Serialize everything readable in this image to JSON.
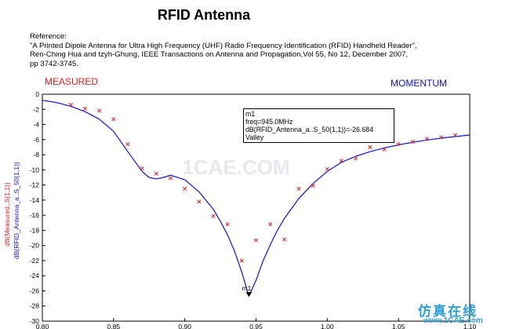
{
  "header": {
    "title": "RFID Antenna",
    "reference_lines": [
      "Reference:",
      "\"A Printed Dipole Antenna for Ultra High Frequency (UHF) Radio Frequency Identification (RFID) Handheld  Reader\",",
      "Ren-Ching Hua and tzyh-Ghung, IEEE Transactions on Antenna and Propagation,Vol 55, No 12, December 2007,",
      "pp 3742-3745."
    ]
  },
  "labels": {
    "measured": "MEASURED",
    "momentum": "MOMENTUM",
    "ylabel_measured": "dB(Measured..S(1,1))",
    "ylabel_sim": "dB(RFID_Antenna_a..S_50(1,1))"
  },
  "marker": {
    "name": "m1",
    "freq_line": "freq=945.0MHz",
    "value_line": "dB(RFID_Antenna_a..S_50(1,1))=-26.684",
    "type_line": "Valley",
    "x": 0.945,
    "y": -26.684
  },
  "watermarks": {
    "center": "1CAE.COM",
    "corner_cn": "仿真在线",
    "corner_url": "www.1CAE.com"
  },
  "colors": {
    "measured": "#e02020",
    "simulated": "#1010e0"
  },
  "chart_data": {
    "type": "line",
    "title": "",
    "xlabel": "",
    "ylabel": "dB(Measured..S(1,1)) / dB(RFID_Antenna_a..S_50(1,1))",
    "xlim": [
      0.8,
      1.1
    ],
    "ylim": [
      -30,
      0
    ],
    "xticks": [
      0.8,
      0.85,
      0.9,
      0.95,
      1.0,
      1.05,
      1.1
    ],
    "xtick_labels": [
      "0.80",
      "0.85",
      "0.90",
      "0.95",
      "1.00",
      "1.05",
      "1.10"
    ],
    "yticks": [
      0,
      -2,
      -4,
      -6,
      -8,
      -10,
      -12,
      -14,
      -16,
      -18,
      -20,
      -22,
      -24,
      -26,
      -28,
      -30
    ],
    "grid": false,
    "series": [
      {
        "name": "dB(RFID_Antenna_a..S_50(1,1))",
        "style": "line",
        "color": "#1010e0",
        "x": [
          0.8,
          0.81,
          0.82,
          0.83,
          0.84,
          0.85,
          0.86,
          0.87,
          0.875,
          0.88,
          0.885,
          0.89,
          0.9,
          0.91,
          0.92,
          0.925,
          0.93,
          0.935,
          0.94,
          0.945,
          0.95,
          0.955,
          0.96,
          0.965,
          0.97,
          0.98,
          0.99,
          1.0,
          1.01,
          1.02,
          1.03,
          1.04,
          1.05,
          1.06,
          1.07,
          1.08,
          1.09,
          1.1
        ],
        "y": [
          -0.8,
          -1.1,
          -1.6,
          -2.3,
          -3.3,
          -4.9,
          -7.6,
          -10.2,
          -11.0,
          -11.2,
          -11.0,
          -10.7,
          -11.3,
          -12.9,
          -15.2,
          -16.8,
          -18.6,
          -20.8,
          -23.5,
          -26.7,
          -24.6,
          -22.0,
          -19.9,
          -18.0,
          -16.4,
          -13.8,
          -11.8,
          -10.2,
          -9.0,
          -8.2,
          -7.6,
          -7.1,
          -6.7,
          -6.35,
          -6.05,
          -5.8,
          -5.6,
          -5.4
        ]
      },
      {
        "name": "dB(Measured..S(1,1))",
        "style": "markers",
        "color": "#e02020",
        "x": [
          0.82,
          0.83,
          0.84,
          0.85,
          0.86,
          0.87,
          0.88,
          0.89,
          0.9,
          0.91,
          0.92,
          0.93,
          0.94,
          0.95,
          0.96,
          0.97,
          0.98,
          0.99,
          1.0,
          1.01,
          1.02,
          1.03,
          1.04,
          1.05,
          1.06,
          1.07,
          1.08,
          1.09
        ],
        "y": [
          -1.4,
          -1.9,
          -2.2,
          -3.3,
          -6.6,
          -9.8,
          -10.5,
          -11.1,
          -12.5,
          -14.2,
          -16.1,
          -17.2,
          -22.0,
          -19.3,
          -17.2,
          -19.2,
          -12.5,
          -12.1,
          -9.9,
          -8.8,
          -8.5,
          -7.0,
          -7.3,
          -6.6,
          -6.3,
          -5.9,
          -5.7,
          -5.4
        ]
      }
    ]
  }
}
